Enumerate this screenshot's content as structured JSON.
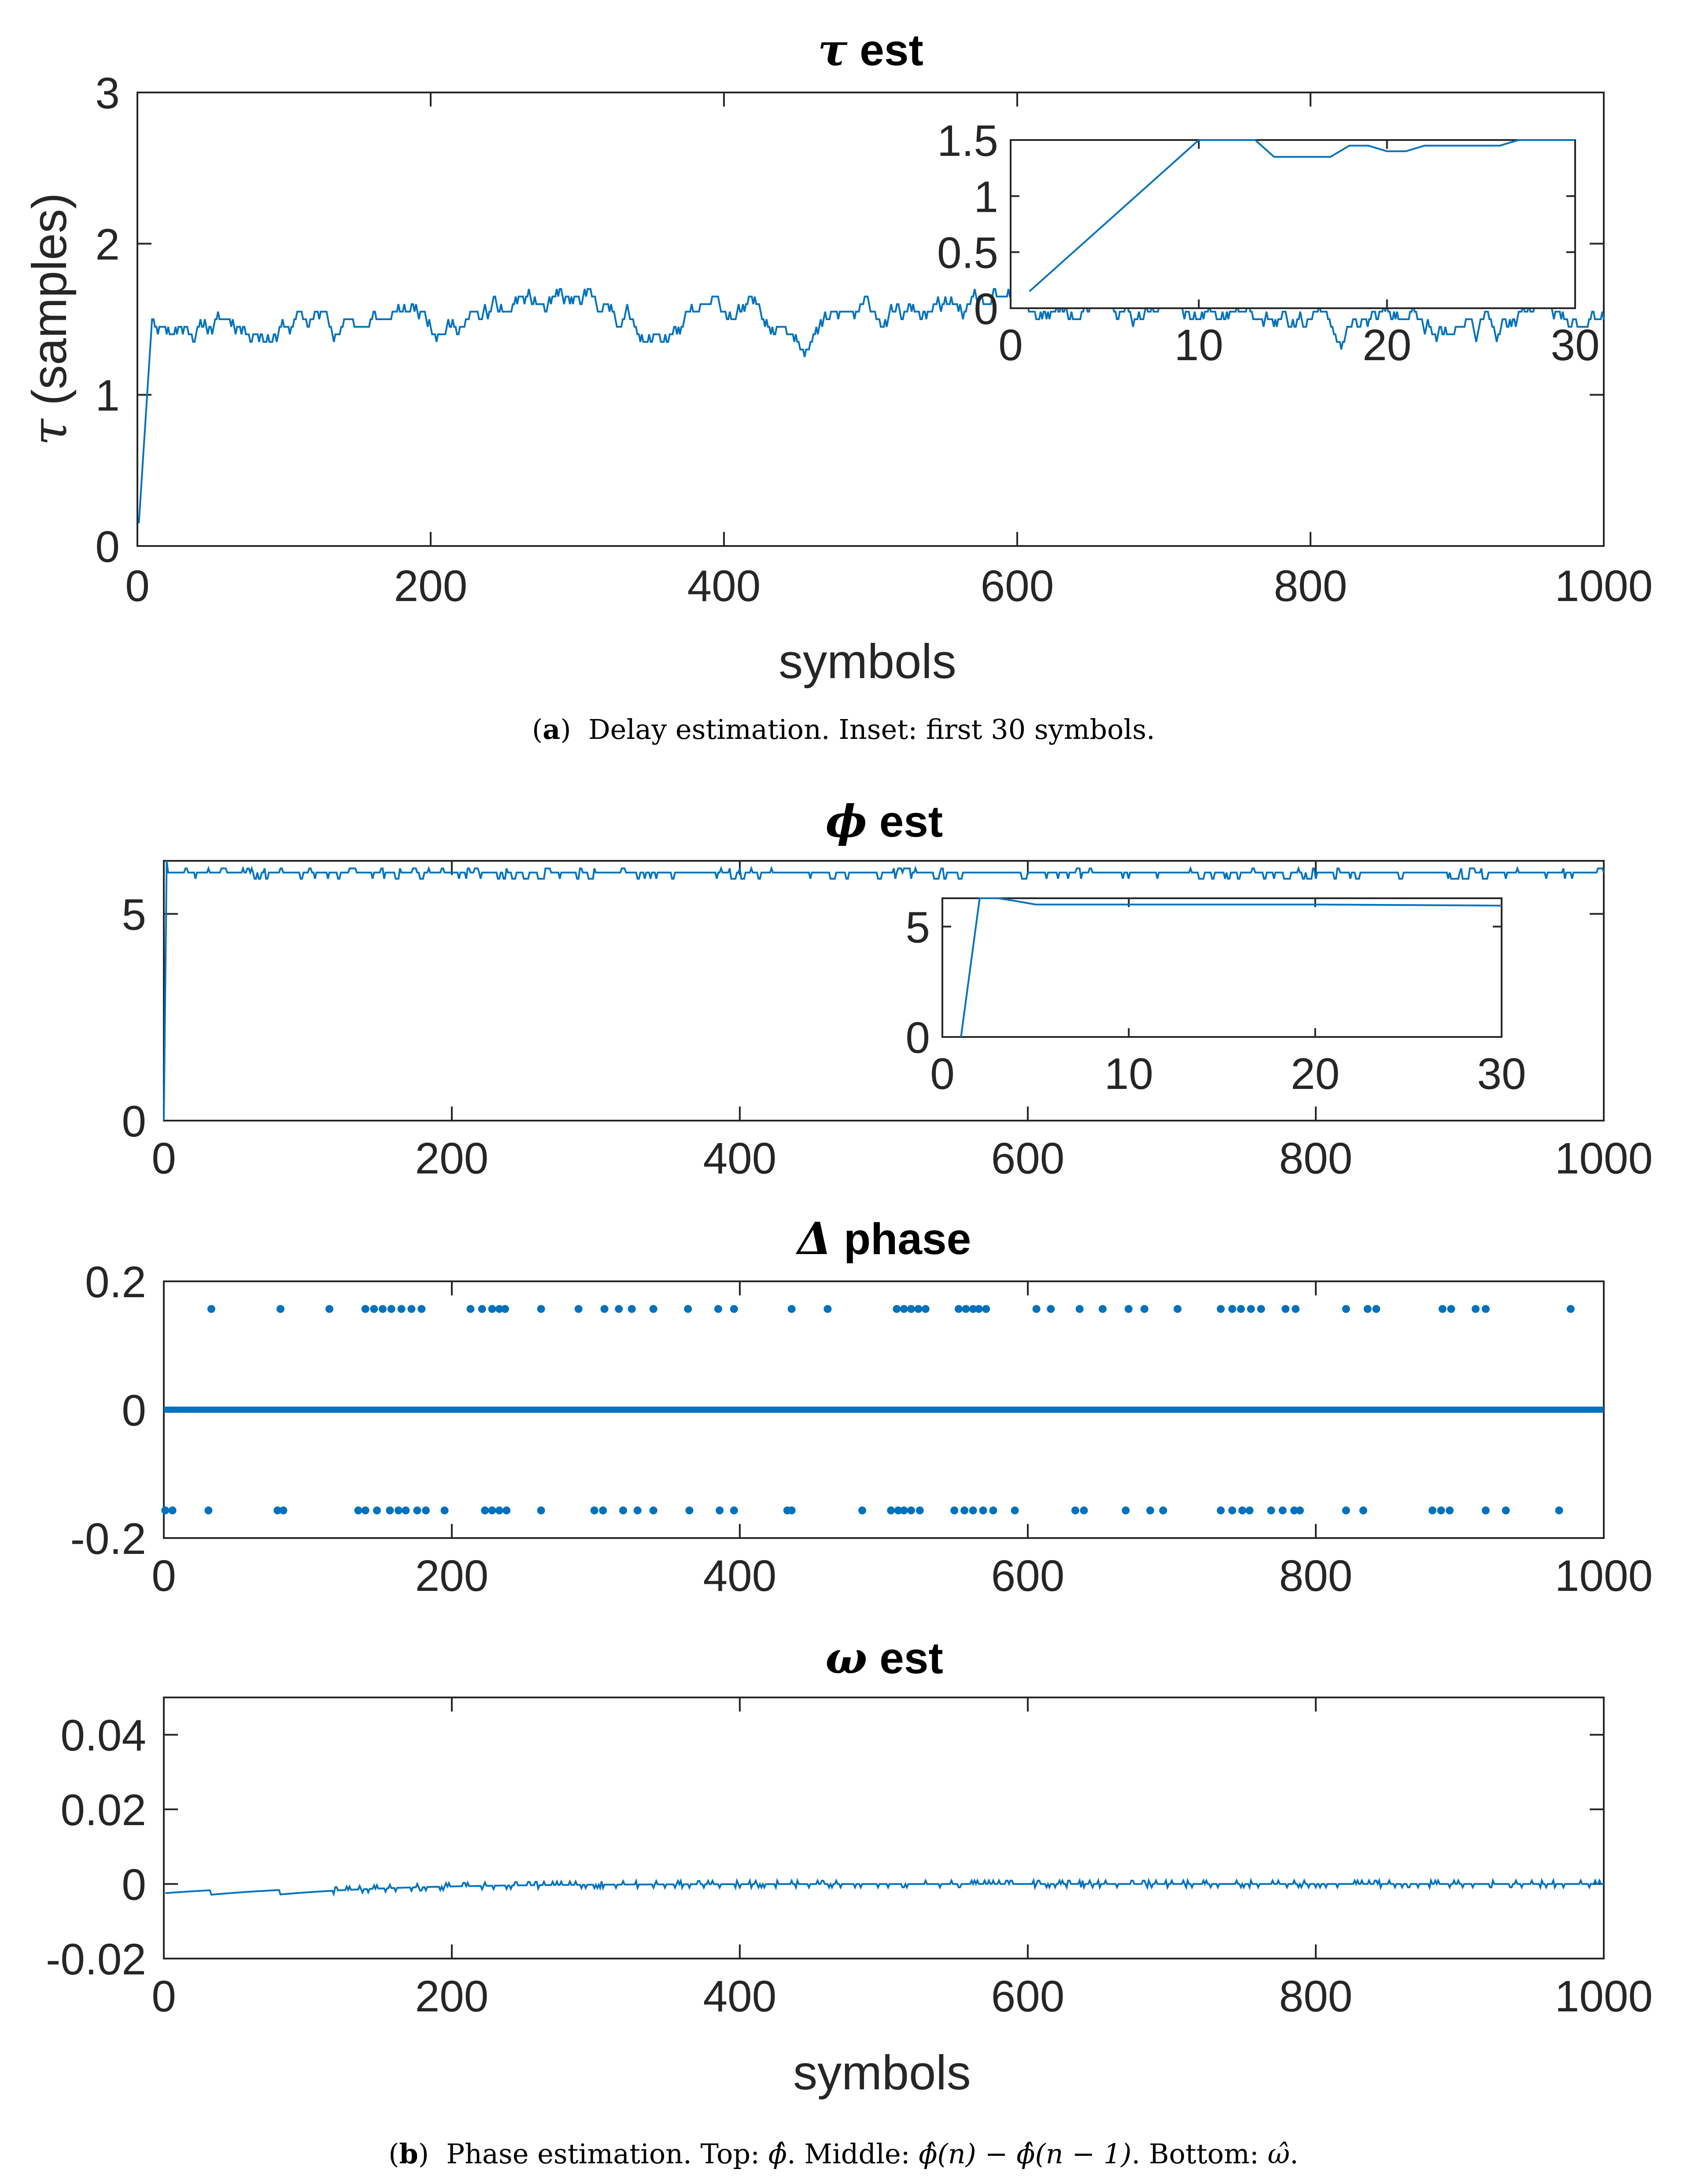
{
  "colors": {
    "series": "#0072BD",
    "axis": "#262626"
  },
  "chart_data": [
    {
      "id": "tau",
      "type": "line",
      "title_symbol": "τ",
      "title_text": " est",
      "xlabel": "symbols",
      "ylabel_symbol": "τ",
      "ylabel_text": " (samples)",
      "xlim": [
        0,
        1000
      ],
      "ylim": [
        0,
        3
      ],
      "xticks": [
        0,
        200,
        400,
        600,
        800,
        1000
      ],
      "yticks": [
        0,
        1,
        2,
        3
      ],
      "ytick_labels": [
        "0",
        "1",
        "2",
        "3"
      ],
      "series": [
        {
          "name": "tau_est",
          "generator": "tau",
          "seed": 11
        }
      ],
      "inset": {
        "type": "line",
        "xlim": [
          0,
          30
        ],
        "ylim": [
          0,
          1.5
        ],
        "xticks": [
          0,
          10,
          20,
          30
        ],
        "yticks": [
          0,
          0.5,
          1,
          1.5
        ],
        "ytick_labels": [
          "0",
          "0.5",
          "1",
          "1.5"
        ],
        "x": [
          1,
          10,
          11,
          12,
          13,
          14,
          15,
          16,
          17,
          18,
          19,
          20,
          21,
          22,
          23,
          24,
          25,
          26,
          27,
          28,
          29,
          30
        ],
        "y": [
          0.15,
          1.5,
          1.5,
          1.5,
          1.5,
          1.35,
          1.35,
          1.35,
          1.35,
          1.45,
          1.45,
          1.4,
          1.4,
          1.45,
          1.45,
          1.45,
          1.45,
          1.45,
          1.5,
          1.5,
          1.5,
          1.5
        ]
      }
    },
    {
      "id": "phi",
      "type": "line",
      "title_symbol": "ϕ",
      "title_text": " est",
      "xlabel": "",
      "xlim": [
        0,
        1000
      ],
      "ylim": [
        0,
        6.2832
      ],
      "xticks": [
        0,
        200,
        400,
        600,
        800,
        1000
      ],
      "yticks": [
        0,
        5
      ],
      "ytick_labels": [
        "0",
        "5"
      ],
      "series": [
        {
          "name": "phi_est",
          "generator": "phi",
          "seed": 23,
          "levels": [
            6.0,
            5.85,
            6.1
          ]
        }
      ],
      "inset": {
        "type": "line",
        "xlim": [
          0,
          30
        ],
        "ylim": [
          0,
          6.2832
        ],
        "xticks": [
          0,
          10,
          20,
          30
        ],
        "yticks": [
          0,
          5
        ],
        "ytick_labels": [
          "0",
          "5"
        ],
        "x": [
          1,
          2,
          3,
          4,
          5,
          10,
          20,
          30
        ],
        "y": [
          0,
          6.2832,
          6.2832,
          6.15,
          6.0,
          6.0,
          6.0,
          5.95
        ]
      }
    },
    {
      "id": "dphase",
      "type": "scatter",
      "title_symbol": "Δ",
      "title_text": " phase",
      "xlabel": "",
      "xlim": [
        0,
        1000
      ],
      "ylim": [
        -0.2,
        0.2
      ],
      "xticks": [
        0,
        200,
        400,
        600,
        800,
        1000
      ],
      "yticks": [
        -0.2,
        0,
        0.2
      ],
      "ytick_labels": [
        "-0.2",
        "0",
        "0.2"
      ],
      "series": [
        {
          "name": "zero",
          "value": 0
        },
        {
          "name": "positive",
          "value": 0.157,
          "x": [
            33,
            81,
            115,
            140,
            146,
            152,
            158,
            165,
            172,
            179,
            213,
            221,
            228,
            233,
            237,
            262,
            288,
            306,
            316,
            325,
            340,
            364,
            385,
            396,
            436,
            461,
            509,
            514,
            519,
            524,
            529,
            552,
            557,
            562,
            566,
            571,
            606,
            616,
            636,
            652,
            670,
            681,
            704,
            734,
            742,
            748,
            755,
            762,
            779,
            786,
            821,
            836,
            842,
            888,
            894,
            911,
            918,
            977
          ]
        },
        {
          "name": "negative",
          "value": -0.157,
          "x": [
            1,
            6,
            31,
            79,
            83,
            135,
            140,
            148,
            157,
            163,
            168,
            176,
            182,
            195,
            223,
            228,
            233,
            238,
            262,
            299,
            305,
            319,
            329,
            340,
            365,
            386,
            396,
            433,
            436,
            485,
            505,
            510,
            514,
            519,
            525,
            549,
            556,
            562,
            569,
            576,
            591,
            633,
            639,
            668,
            685,
            694,
            734,
            742,
            749,
            754,
            769,
            777,
            785,
            789,
            821,
            833,
            881,
            887,
            893,
            918,
            932,
            969
          ]
        }
      ]
    },
    {
      "id": "omega",
      "type": "line",
      "title_symbol": "ω",
      "title_text": " est",
      "xlabel": "symbols",
      "xlim": [
        0,
        1000
      ],
      "ylim": [
        -0.02,
        0.05
      ],
      "xticks": [
        0,
        200,
        400,
        600,
        800,
        1000
      ],
      "yticks": [
        -0.02,
        0,
        0.02,
        0.04
      ],
      "ytick_labels": [
        "-0.02",
        "0",
        "0.02",
        "0.04"
      ],
      "series": [
        {
          "name": "omega_est",
          "generator": "omega",
          "seed": 37
        }
      ]
    }
  ],
  "captions": {
    "a": {
      "tag": "a",
      "text": "Delay estimation. Inset: first 30 symbols."
    },
    "b": {
      "tag": "b",
      "lead": "Phase estimation. Top: ",
      "top": "ϕ̂",
      "mid_label": ". Middle: ",
      "middle": "ϕ̂(n) − ϕ̂(n − 1)",
      "bottom_label": ". Bottom: ",
      "bottom": "ω̂",
      "end": "."
    }
  }
}
